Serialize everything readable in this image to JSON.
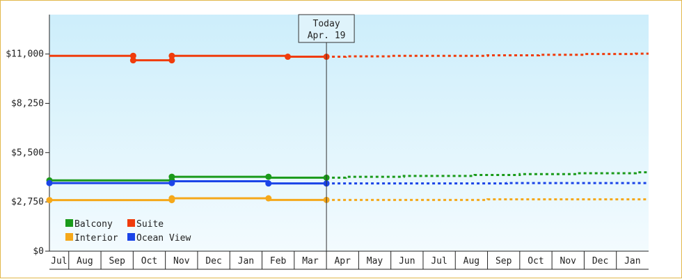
{
  "chart_data": {
    "type": "line",
    "title": "",
    "xlabel": "",
    "ylabel": "",
    "ylim": [
      0,
      13200
    ],
    "y_ticks": [
      0,
      2750,
      5500,
      8250,
      11000
    ],
    "y_tick_labels": [
      "$0",
      "$2,750",
      "$5,500",
      "$8,250",
      "$11,000"
    ],
    "x_categories": [
      "Jul",
      "Aug",
      "Sep",
      "Oct",
      "Nov",
      "Dec",
      "Jan",
      "Feb",
      "Mar",
      "Apr",
      "May",
      "Jun",
      "Jul",
      "Aug",
      "Sep",
      "Oct",
      "Nov",
      "Dec",
      "Jan"
    ],
    "grid": false,
    "legend_position": "bottom-left",
    "today_marker": {
      "line1": "Today",
      "line2": "Apr. 19",
      "x": 9.0
    },
    "series": [
      {
        "name": "Suite",
        "color": "#f03c0c",
        "points": [
          [
            0.0,
            10900
          ],
          [
            3.0,
            10900
          ],
          [
            3.0,
            10650
          ],
          [
            4.2,
            10650
          ],
          [
            4.2,
            10900
          ],
          [
            7.8,
            10900
          ],
          [
            7.8,
            10850
          ],
          [
            9.0,
            10850
          ]
        ],
        "markers": [
          [
            3.0,
            10900
          ],
          [
            3.0,
            10650
          ],
          [
            4.2,
            10650
          ],
          [
            4.2,
            10900
          ],
          [
            7.8,
            10850
          ],
          [
            9.0,
            10850
          ]
        ],
        "forecast": [
          [
            9.0,
            10850
          ],
          [
            9.6,
            10850
          ],
          [
            9.6,
            10870
          ],
          [
            11.0,
            10870
          ],
          [
            11.0,
            10900
          ],
          [
            14.0,
            10900
          ],
          [
            14.0,
            10930
          ],
          [
            15.6,
            10930
          ],
          [
            15.6,
            10960
          ],
          [
            17.0,
            10960
          ],
          [
            17.0,
            11000
          ],
          [
            18.6,
            11000
          ],
          [
            18.6,
            11020
          ],
          [
            19.6,
            11020
          ]
        ]
      },
      {
        "name": "Balcony",
        "color": "#1a9a1a",
        "points": [
          [
            0.0,
            3950
          ],
          [
            4.2,
            3950
          ],
          [
            4.2,
            4150
          ],
          [
            7.2,
            4150
          ],
          [
            7.2,
            4100
          ],
          [
            9.0,
            4100
          ]
        ],
        "markers": [
          [
            0.0,
            3950
          ],
          [
            4.2,
            3950
          ],
          [
            4.2,
            4150
          ],
          [
            7.2,
            4150
          ],
          [
            9.0,
            4100
          ]
        ],
        "forecast": [
          [
            9.0,
            4100
          ],
          [
            9.6,
            4100
          ],
          [
            9.6,
            4150
          ],
          [
            11.4,
            4150
          ],
          [
            11.4,
            4200
          ],
          [
            13.6,
            4200
          ],
          [
            13.6,
            4250
          ],
          [
            15.0,
            4250
          ],
          [
            15.0,
            4300
          ],
          [
            16.8,
            4300
          ],
          [
            16.8,
            4350
          ],
          [
            18.6,
            4350
          ],
          [
            18.6,
            4400
          ],
          [
            19.6,
            4400
          ]
        ]
      },
      {
        "name": "Ocean View",
        "color": "#1a44e8",
        "points": [
          [
            0.0,
            3800
          ],
          [
            4.2,
            3800
          ],
          [
            4.2,
            3900
          ],
          [
            7.2,
            3900
          ],
          [
            7.2,
            3780
          ],
          [
            9.0,
            3780
          ]
        ],
        "markers": [
          [
            0.0,
            3800
          ],
          [
            4.2,
            3800
          ],
          [
            7.2,
            3780
          ],
          [
            9.0,
            3780
          ]
        ],
        "forecast": [
          [
            9.0,
            3780
          ],
          [
            14.6,
            3780
          ],
          [
            14.6,
            3800
          ],
          [
            19.6,
            3800
          ]
        ]
      },
      {
        "name": "Interior",
        "color": "#f5a81a",
        "points": [
          [
            0.0,
            2850
          ],
          [
            4.2,
            2850
          ],
          [
            4.2,
            2950
          ],
          [
            7.2,
            2950
          ],
          [
            7.2,
            2860
          ],
          [
            9.0,
            2860
          ]
        ],
        "markers": [
          [
            0.0,
            2850
          ],
          [
            4.2,
            2850
          ],
          [
            4.2,
            2950
          ],
          [
            7.2,
            2950
          ],
          [
            9.0,
            2860
          ]
        ],
        "forecast": [
          [
            9.0,
            2860
          ],
          [
            14.0,
            2860
          ],
          [
            14.0,
            2890
          ],
          [
            19.6,
            2890
          ]
        ]
      }
    ],
    "legend": [
      {
        "name": "Balcony",
        "color": "#1a9a1a"
      },
      {
        "name": "Suite",
        "color": "#f03c0c"
      },
      {
        "name": "Interior",
        "color": "#f5a81a"
      },
      {
        "name": "Ocean View",
        "color": "#1a44e8"
      }
    ]
  }
}
